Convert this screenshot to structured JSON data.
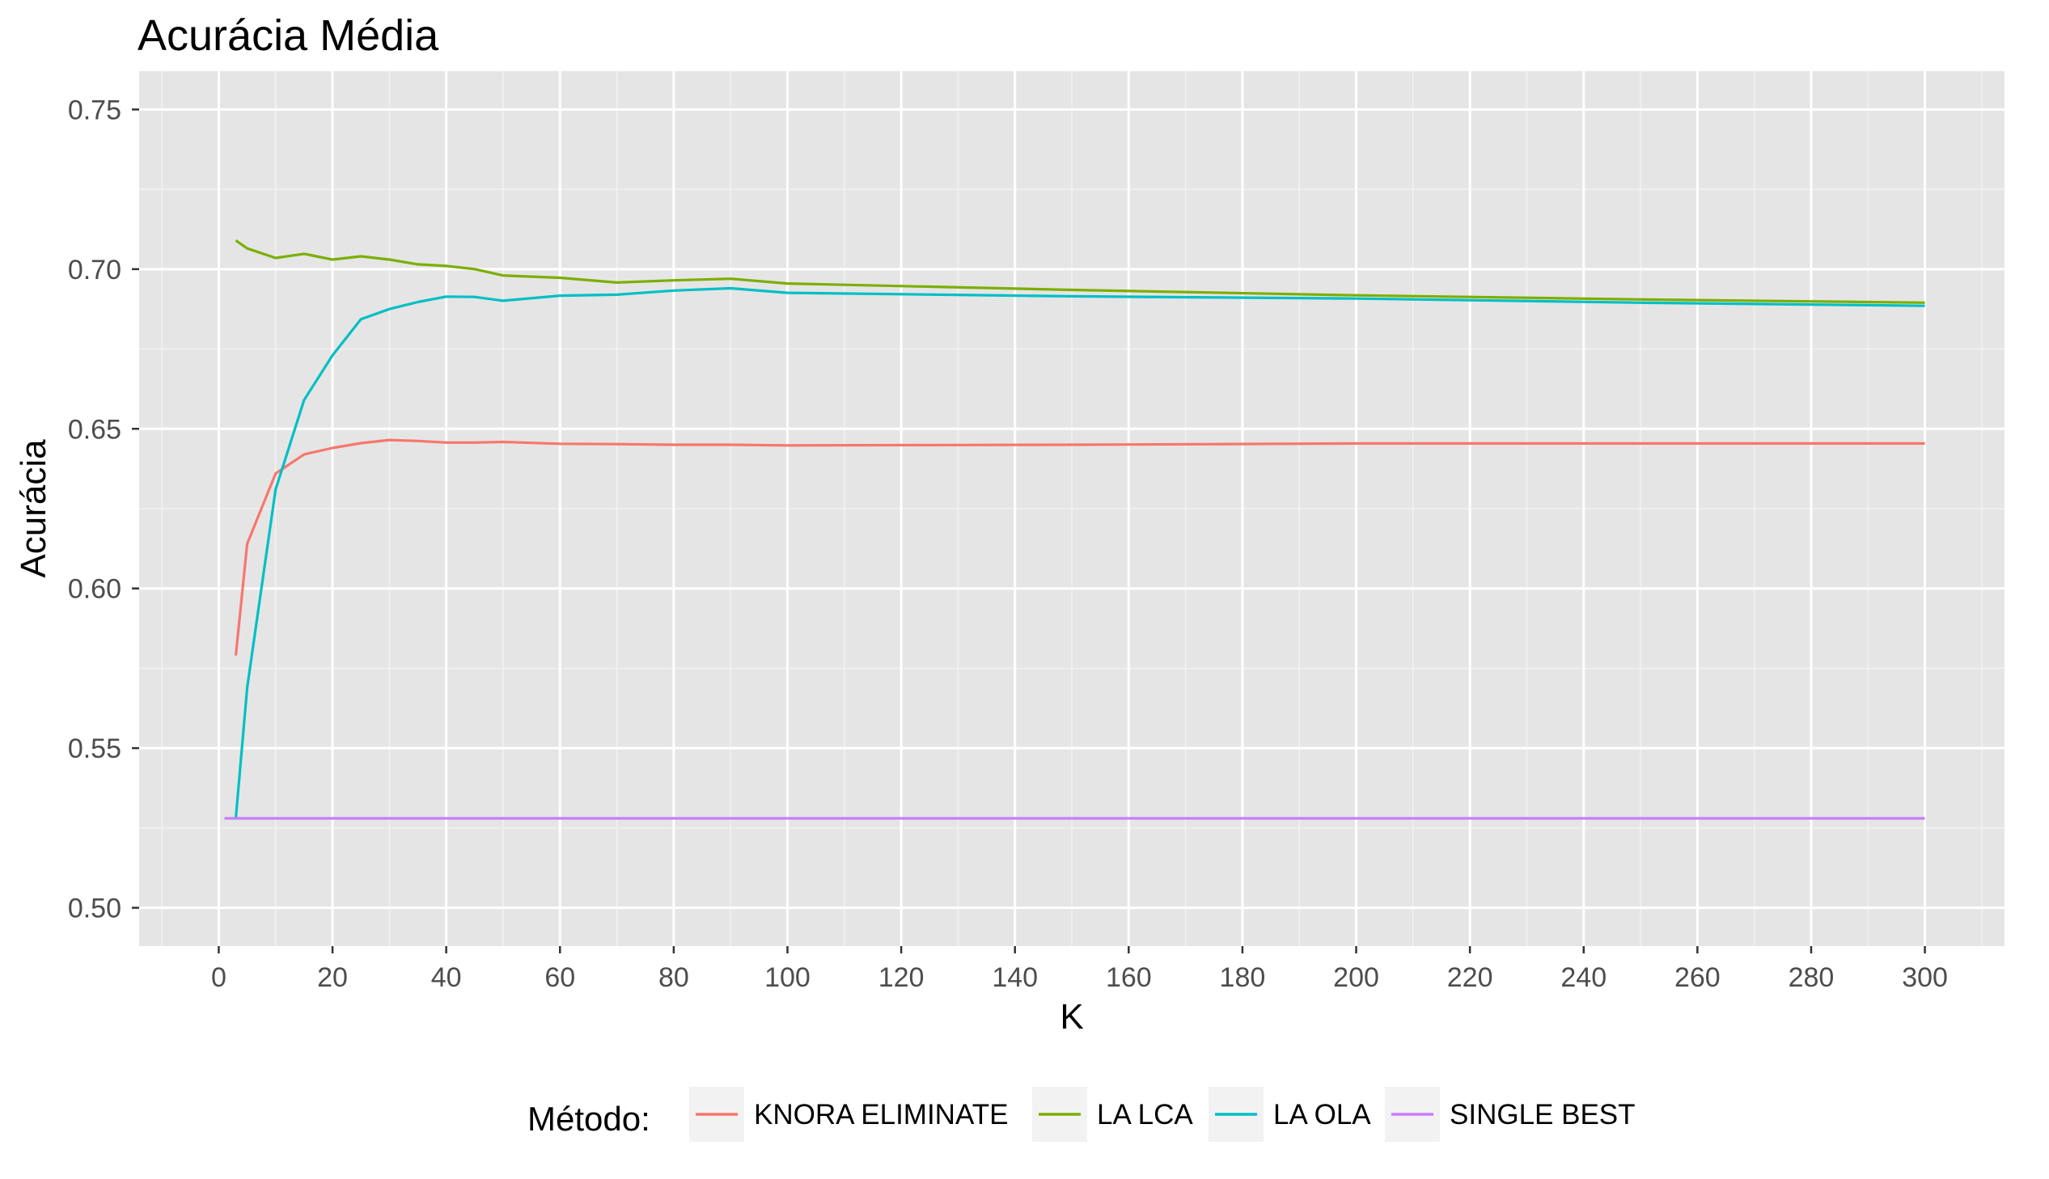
{
  "chart_data": {
    "type": "line",
    "title": "Acurácia Média",
    "xlabel": "K",
    "ylabel": "Acurácia",
    "xlim": [
      -14,
      314
    ],
    "ylim": [
      0.488,
      0.762
    ],
    "x_ticks": [
      0,
      20,
      40,
      60,
      80,
      100,
      120,
      140,
      160,
      180,
      200,
      220,
      240,
      260,
      280,
      300
    ],
    "x_tick_labels": [
      "0",
      "20",
      "40",
      "60",
      "80",
      "100",
      "120",
      "140",
      "160",
      "180",
      "200",
      "220",
      "240",
      "260",
      "280",
      "300"
    ],
    "y_ticks": [
      0.5,
      0.55,
      0.6,
      0.65,
      0.7,
      0.75
    ],
    "y_tick_labels": [
      "0.50",
      "0.55",
      "0.60",
      "0.65",
      "0.70",
      "0.75"
    ],
    "grid": true,
    "legend_position": "bottom",
    "legend_title": "Método:",
    "series": [
      {
        "name": "KNORA ELIMINATE",
        "color": "#F8766D",
        "x": [
          3,
          5,
          10,
          15,
          20,
          25,
          30,
          35,
          40,
          45,
          50,
          60,
          70,
          80,
          90,
          100,
          150,
          200,
          250,
          300
        ],
        "y": [
          0.579,
          0.614,
          0.636,
          0.642,
          0.644,
          0.6455,
          0.6465,
          0.6462,
          0.6457,
          0.6457,
          0.6459,
          0.6453,
          0.6452,
          0.645,
          0.645,
          0.6448,
          0.645,
          0.6454,
          0.6454,
          0.6454
        ]
      },
      {
        "name": "LA LCA",
        "color": "#7CAE00",
        "x": [
          3,
          5,
          10,
          15,
          20,
          25,
          30,
          35,
          40,
          45,
          50,
          60,
          70,
          80,
          90,
          100,
          150,
          200,
          250,
          300
        ],
        "y": [
          0.709,
          0.7065,
          0.7035,
          0.7048,
          0.703,
          0.704,
          0.703,
          0.7015,
          0.701,
          0.7,
          0.698,
          0.6973,
          0.6958,
          0.6965,
          0.697,
          0.6955,
          0.6935,
          0.6918,
          0.6905,
          0.6895
        ]
      },
      {
        "name": "LA OLA",
        "color": "#00BFC4",
        "x": [
          3,
          5,
          10,
          15,
          20,
          25,
          30,
          35,
          40,
          45,
          50,
          60,
          70,
          80,
          90,
          100,
          150,
          200,
          250,
          300
        ],
        "y": [
          0.528,
          0.569,
          0.631,
          0.659,
          0.673,
          0.6843,
          0.6875,
          0.6897,
          0.6914,
          0.6913,
          0.6901,
          0.6917,
          0.692,
          0.6933,
          0.694,
          0.6926,
          0.6915,
          0.6908,
          0.6895,
          0.6885
        ]
      },
      {
        "name": "SINGLE BEST",
        "color": "#C77CFF",
        "x": [
          1,
          300
        ],
        "y": [
          0.528,
          0.528
        ]
      }
    ]
  }
}
